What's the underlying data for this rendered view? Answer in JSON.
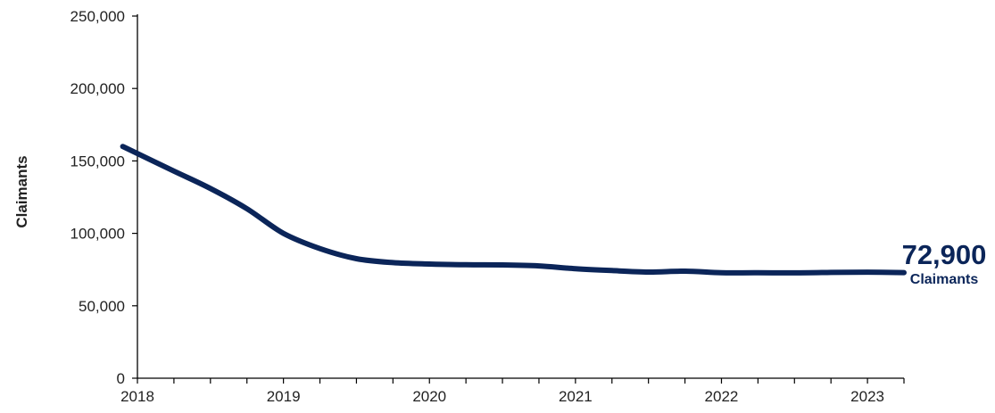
{
  "chart_data": {
    "type": "line",
    "title": "",
    "xlabel": "",
    "ylabel": "Claimants",
    "xlim": [
      2018,
      2023.25
    ],
    "ylim": [
      0,
      250000
    ],
    "y_ticks": [
      0,
      50000,
      100000,
      150000,
      200000,
      250000
    ],
    "y_tick_labels": [
      "0",
      "50,000",
      "100,000",
      "150,000",
      "200,000",
      "250,000"
    ],
    "x_tick_labels": [
      "2018",
      "2019",
      "2020",
      "2021",
      "2022",
      "2023"
    ],
    "grid": false,
    "line_color": "#0b2559",
    "series": [
      {
        "x": [
          2017.9,
          2018.25,
          2018.5,
          2018.75,
          2019.0,
          2019.25,
          2019.5,
          2019.75,
          2020.0,
          2020.25,
          2020.5,
          2020.75,
          2021.0,
          2021.25,
          2021.5,
          2021.75,
          2022.0,
          2022.25,
          2022.5,
          2022.75,
          2023.0,
          2023.25
        ],
        "values": [
          160000,
          143000,
          131000,
          117000,
          100000,
          89500,
          82500,
          79800,
          78800,
          78300,
          78200,
          77500,
          75600,
          74300,
          73300,
          73900,
          72800,
          72800,
          72700,
          73000,
          73200,
          72900
        ]
      }
    ],
    "annotation": {
      "value": "72,900",
      "unit": "Claimants"
    }
  }
}
